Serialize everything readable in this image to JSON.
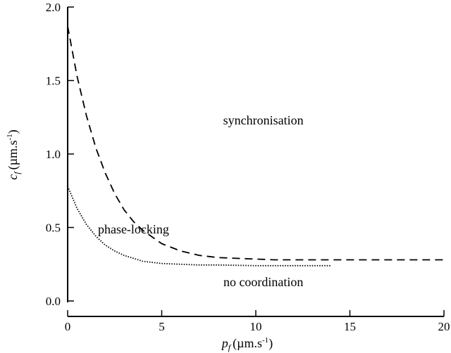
{
  "chart_data": {
    "type": "line",
    "title": "",
    "xlabel": {
      "symbol": "p",
      "subscript": "f",
      "unit": "(µm.s",
      "exponent": "-1",
      "close": ")"
    },
    "ylabel": {
      "symbol": "c",
      "subscript": "f",
      "unit": "(µm.s",
      "exponent": "-1",
      "close": ")"
    },
    "xlim": [
      0,
      20
    ],
    "ylim": [
      0,
      2.0
    ],
    "xticks": [
      0,
      5,
      10,
      15,
      20
    ],
    "xtick_labels": [
      "0",
      "5",
      "10",
      "15",
      "20"
    ],
    "yticks": [
      0.0,
      0.5,
      1.0,
      1.5,
      2.0
    ],
    "ytick_labels": [
      "0.0",
      "0.5",
      "1.0",
      "1.5",
      "2.0"
    ],
    "grid": false,
    "series": [
      {
        "style": "dashed",
        "color": "#000000",
        "x": [
          0,
          0.5,
          1,
          1.5,
          2,
          2.5,
          3,
          3.5,
          4,
          5,
          6,
          7,
          8,
          9,
          10,
          11,
          12,
          14,
          16,
          18,
          20
        ],
        "y": [
          1.87,
          1.53,
          1.26,
          1.04,
          0.87,
          0.73,
          0.62,
          0.54,
          0.48,
          0.39,
          0.34,
          0.31,
          0.295,
          0.29,
          0.285,
          0.28,
          0.28,
          0.28,
          0.28,
          0.28,
          0.28
        ]
      },
      {
        "style": "dotted",
        "color": "#000000",
        "x": [
          0,
          0.5,
          1,
          1.5,
          2,
          2.5,
          3,
          4,
          5,
          6,
          7,
          8,
          10,
          12,
          14
        ],
        "y": [
          0.78,
          0.63,
          0.52,
          0.44,
          0.38,
          0.34,
          0.31,
          0.27,
          0.255,
          0.25,
          0.245,
          0.245,
          0.24,
          0.24,
          0.24
        ]
      }
    ],
    "annotations": [
      {
        "text": "synchronisation",
        "x": 10.4,
        "y": 1.2
      },
      {
        "text": "phase-locking",
        "x": 3.5,
        "y": 0.46
      },
      {
        "text": "no coordination",
        "x": 10.4,
        "y": 0.1
      }
    ]
  }
}
